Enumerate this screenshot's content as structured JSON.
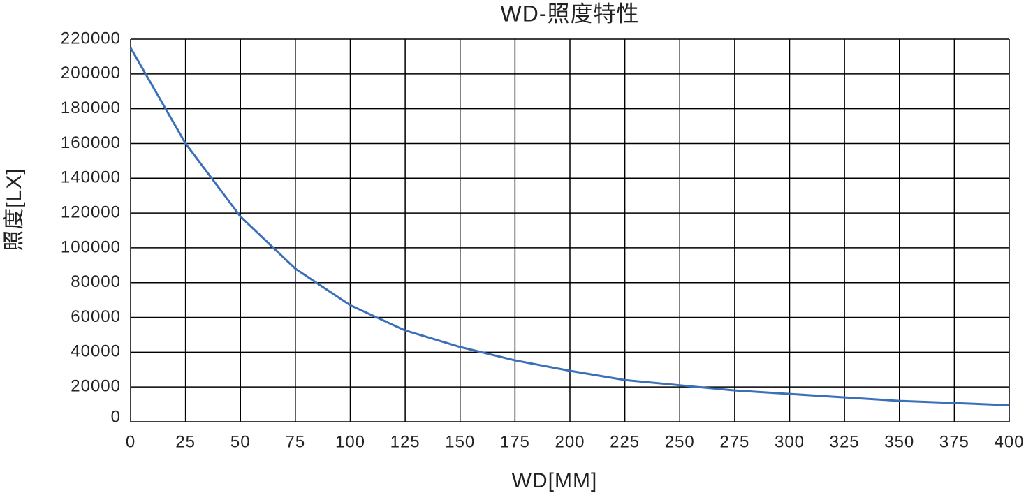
{
  "chart_data": {
    "type": "line",
    "title": "WD-照度特性",
    "x_label": "WD[MM]",
    "y_label": "照度[LX]",
    "x": [
      0,
      25,
      50,
      75,
      100,
      125,
      150,
      175,
      200,
      225,
      250,
      275,
      300,
      325,
      350,
      375,
      400
    ],
    "series": [
      {
        "name": "照度",
        "color": "#3b70b8",
        "values": [
          215000,
          160000,
          118000,
          88000,
          67000,
          52500,
          43000,
          35300,
          29300,
          24000,
          21000,
          18000,
          16000,
          14000,
          12000,
          10800,
          9500
        ]
      }
    ],
    "xlim": [
      0,
      400
    ],
    "xticks": [
      0,
      25,
      50,
      75,
      100,
      125,
      150,
      175,
      200,
      225,
      250,
      275,
      300,
      325,
      350,
      375,
      400
    ],
    "ylim": [
      0,
      220000
    ],
    "yticks": [
      0,
      20000,
      40000,
      60000,
      80000,
      100000,
      120000,
      140000,
      160000,
      180000,
      200000,
      220000
    ],
    "grid": true
  }
}
